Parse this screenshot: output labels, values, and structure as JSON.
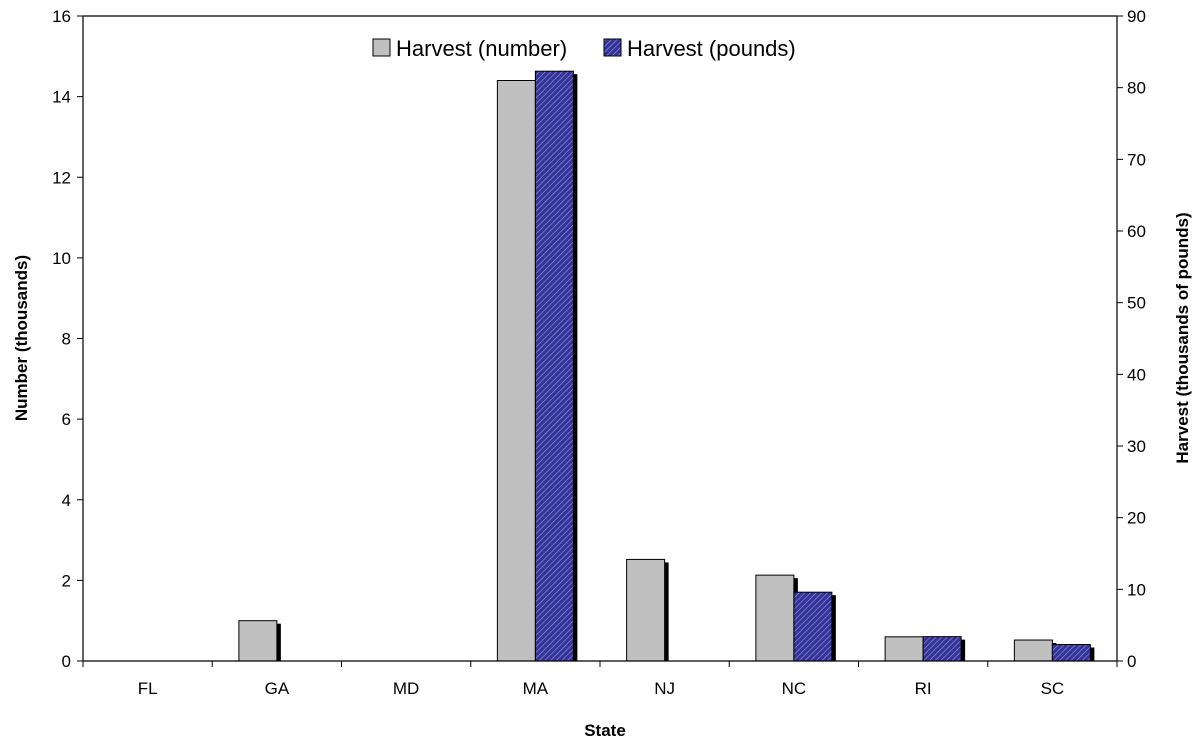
{
  "chart_data": {
    "type": "bar",
    "categories": [
      "FL",
      "GA",
      "MD",
      "MA",
      "NJ",
      "NC",
      "RI",
      "SC"
    ],
    "series": [
      {
        "name": "Harvest (number)",
        "axis": "left",
        "color": "#c0c0c0",
        "values": [
          0,
          1.0,
          0,
          14.4,
          2.52,
          2.13,
          0.6,
          0.52
        ]
      },
      {
        "name": "Harvest (pounds)",
        "axis": "right",
        "color": "#33339a",
        "pattern": "diagonal-hatch",
        "values": [
          0,
          0,
          0,
          82.3,
          0,
          9.6,
          3.4,
          2.3
        ]
      }
    ],
    "xlabel": "State",
    "ylabel": "Number (thousands)",
    "y2label": "Harvest (thousands of pounds)",
    "ylim": [
      0,
      16
    ],
    "y2lim": [
      0,
      90
    ],
    "yticks": [
      "0",
      "2",
      "4",
      "6",
      "8",
      "10",
      "12",
      "14",
      "16"
    ],
    "y2ticks": [
      "0",
      "10",
      "20",
      "30",
      "40",
      "50",
      "60",
      "70",
      "80",
      "90"
    ],
    "grid": false,
    "legend_position": "top-center"
  }
}
